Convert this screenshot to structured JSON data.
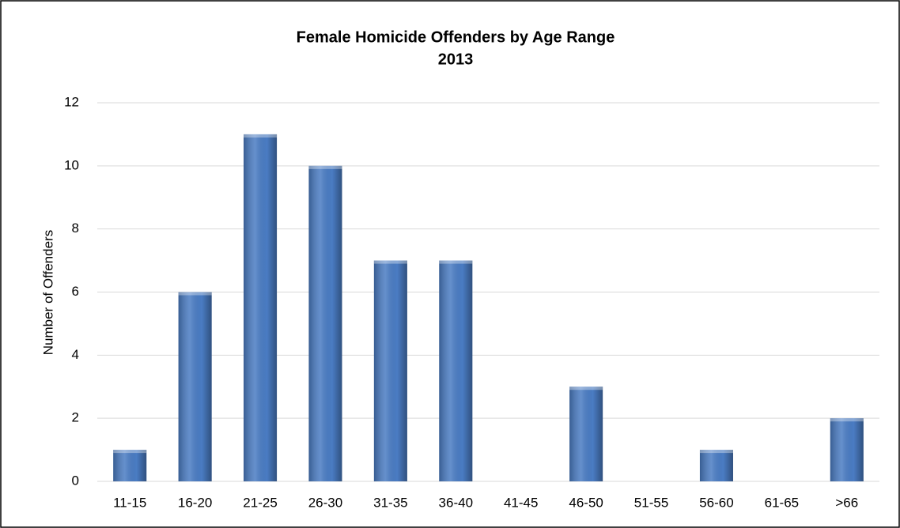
{
  "chart_data": {
    "type": "bar",
    "title": "Female Homicide Offenders by Age Range",
    "subtitle": "2013",
    "y_label": "Number of Offenders",
    "categories": [
      "11-15",
      "16-20",
      "21-25",
      "26-30",
      "31-35",
      "36-40",
      "41-45",
      "46-50",
      "51-55",
      "56-60",
      "61-65",
      ">66"
    ],
    "values": [
      1,
      6,
      11,
      10,
      7,
      7,
      0,
      3,
      0,
      1,
      0,
      2
    ],
    "color": "#4a7cc3",
    "ylim": [
      0,
      12
    ],
    "yticks": [
      0,
      2,
      4,
      6,
      8,
      10,
      12
    ],
    "grid": true
  }
}
